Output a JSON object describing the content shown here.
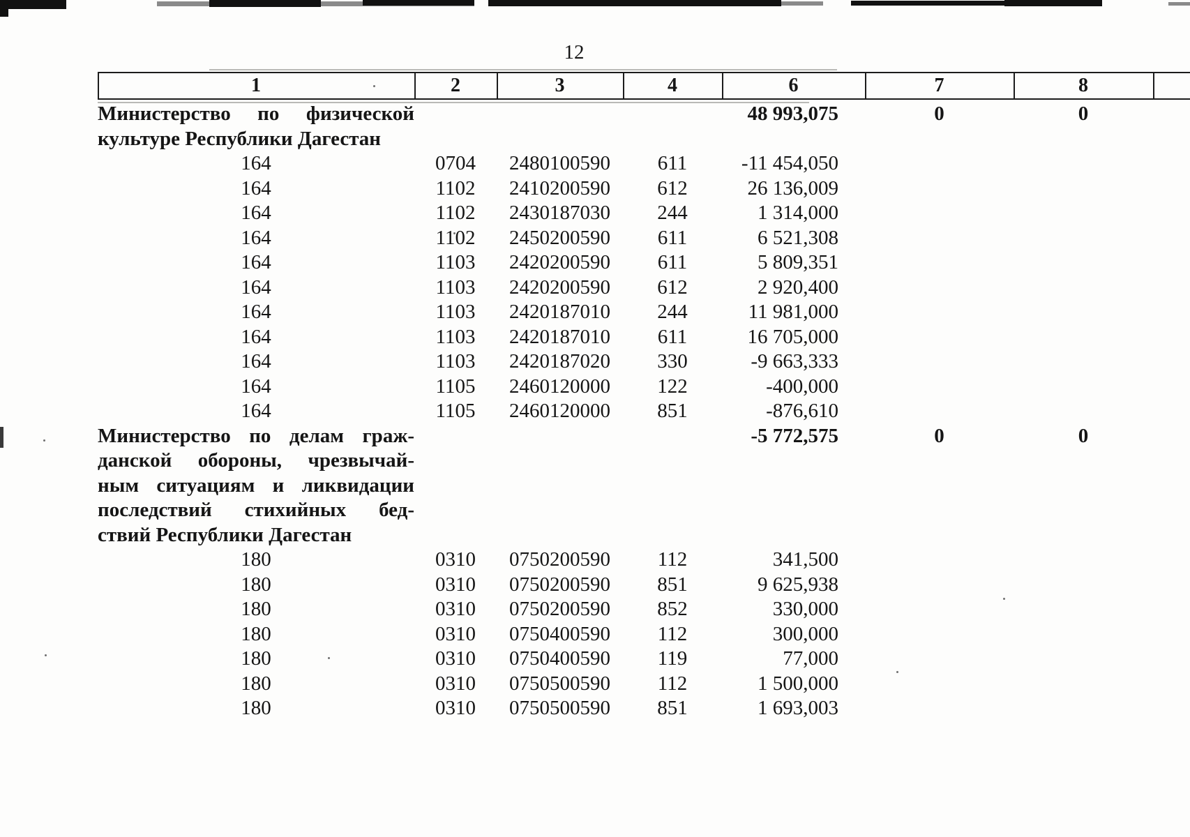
{
  "page": {
    "number": "12"
  },
  "table": {
    "headers": [
      "1",
      "2",
      "3",
      "4",
      "6",
      "7",
      "8"
    ],
    "rows": [
      {
        "type": "section",
        "name": "Министерство по физической культуре Республики Дагестан",
        "name_lines": [
          "Министерство по физической",
          "культуре Республики Дагестан"
        ],
        "col6": "48 993,075",
        "col7": "0",
        "col8": "0"
      },
      {
        "type": "data",
        "col1": "164",
        "col2": "0704",
        "col3": "2480100590",
        "col4": "611",
        "col6": "-11 454,050"
      },
      {
        "type": "data",
        "col1": "164",
        "col2": "1102",
        "col3": "2410200590",
        "col4": "612",
        "col6": "26 136,009"
      },
      {
        "type": "data",
        "col1": "164",
        "col2": "1102",
        "col3": "2430187030",
        "col4": "244",
        "col6": "1 314,000"
      },
      {
        "type": "data",
        "col1": "164",
        "col2": "1102",
        "col3": "2450200590",
        "col4": "611",
        "col6": "6 521,308"
      },
      {
        "type": "data",
        "col1": "164",
        "col2": "1103",
        "col3": "2420200590",
        "col4": "611",
        "col6": "5 809,351"
      },
      {
        "type": "data",
        "col1": "164",
        "col2": "1103",
        "col3": "2420200590",
        "col4": "612",
        "col6": "2 920,400"
      },
      {
        "type": "data",
        "col1": "164",
        "col2": "1103",
        "col3": "2420187010",
        "col4": "244",
        "col6": "11 981,000"
      },
      {
        "type": "data",
        "col1": "164",
        "col2": "1103",
        "col3": "2420187010",
        "col4": "611",
        "col6": "16 705,000"
      },
      {
        "type": "data",
        "col1": "164",
        "col2": "1103",
        "col3": "2420187020",
        "col4": "330",
        "col6": "-9 663,333"
      },
      {
        "type": "data",
        "col1": "164",
        "col2": "1105",
        "col3": "2460120000",
        "col4": "122",
        "col6": "-400,000"
      },
      {
        "type": "data",
        "col1": "164",
        "col2": "1105",
        "col3": "2460120000",
        "col4": "851",
        "col6": "-876,610"
      },
      {
        "type": "section",
        "name": "Министерство по делам гражданской обороны, чрезвычайным ситуациям и ликвидации последствий стихийных бедствий Республики Дагестан",
        "name_lines": [
          "Министерство по делам граж-",
          "данской обороны, чрезвычай-",
          "ным ситуациям и ликвидации",
          "последствий стихийных бед-",
          "ствий Республики Дагестан"
        ],
        "col6": "-5 772,575",
        "col7": "0",
        "col8": "0"
      },
      {
        "type": "data",
        "col1": "180",
        "col2": "0310",
        "col3": "0750200590",
        "col4": "112",
        "col6": "341,500"
      },
      {
        "type": "data",
        "col1": "180",
        "col2": "0310",
        "col3": "0750200590",
        "col4": "851",
        "col6": "9 625,938"
      },
      {
        "type": "data",
        "col1": "180",
        "col2": "0310",
        "col3": "0750200590",
        "col4": "852",
        "col6": "330,000"
      },
      {
        "type": "data",
        "col1": "180",
        "col2": "0310",
        "col3": "0750400590",
        "col4": "112",
        "col6": "300,000"
      },
      {
        "type": "data",
        "col1": "180",
        "col2": "0310",
        "col3": "0750400590",
        "col4": "119",
        "col6": "77,000"
      },
      {
        "type": "data",
        "col1": "180",
        "col2": "0310",
        "col3": "0750500590",
        "col4": "112",
        "col6": "1 500,000"
      },
      {
        "type": "data",
        "col1": "180",
        "col2": "0310",
        "col3": "0750500590",
        "col4": "851",
        "col6": "1 693,003"
      }
    ]
  }
}
